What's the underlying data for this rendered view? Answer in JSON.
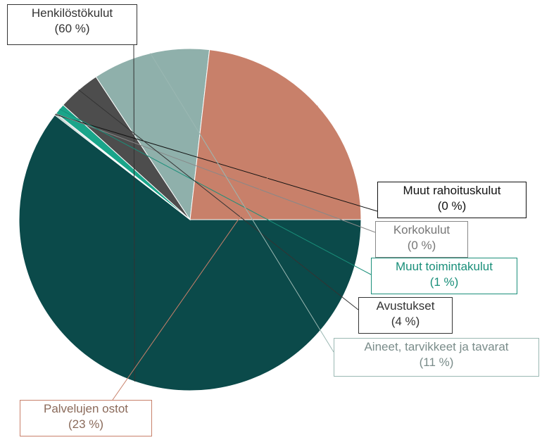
{
  "chart_data": {
    "type": "pie",
    "slices": [
      {
        "label": "Henkilöstökulut",
        "value": 60,
        "display": "(60 %)",
        "color": "#0b4a4a"
      },
      {
        "label": "Muut rahoituskulut",
        "value": 0.1,
        "display": "(0 %)",
        "color": "#1f6b5e"
      },
      {
        "label": "Korkokulut",
        "value": 0.1,
        "display": "(0 %)",
        "color": "#8c8c8c"
      },
      {
        "label": "Muut toimintakulut",
        "value": 1,
        "display": "(1 %)",
        "color": "#1aa58a"
      },
      {
        "label": "Avustukset",
        "value": 4,
        "display": "(4 %)",
        "color": "#4d4d4d"
      },
      {
        "label": "Aineet, tarvikkeet ja tavarat",
        "value": 11,
        "display": "(11 %)",
        "color": "#8fb0ab"
      },
      {
        "label": "Palvelujen ostot",
        "value": 23,
        "display": "(23 %)",
        "color": "#c8806a"
      }
    ],
    "start_angle_deg": 0,
    "direction": "clockwise"
  }
}
